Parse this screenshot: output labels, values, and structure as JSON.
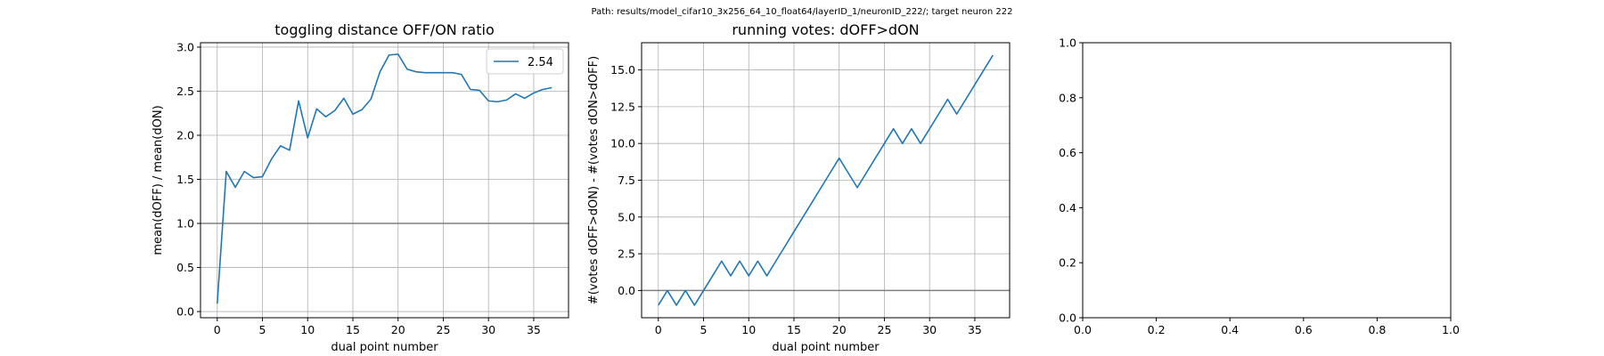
{
  "suptitle": "Path: results/model_cifar10_3x256_64_10_float64/layerID_1/neuronID_222/; target neuron 222",
  "colors": {
    "series": "#1f77b4",
    "hline": "#808080",
    "grid": "#b0b0b0",
    "axis": "#000000"
  },
  "chart_data": [
    {
      "type": "line",
      "title": "toggling distance OFF/ON ratio",
      "xlabel": "dual point number",
      "ylabel": "mean(dOFF) / mean(dON)",
      "xlim": [
        -1.85,
        38.85
      ],
      "ylim": [
        -0.07,
        3.05
      ],
      "xticks": [
        0,
        5,
        10,
        15,
        20,
        25,
        30,
        35
      ],
      "xtick_labels": [
        "0",
        "5",
        "10",
        "15",
        "20",
        "25",
        "30",
        "35"
      ],
      "yticks": [
        0.0,
        0.5,
        1.0,
        1.5,
        2.0,
        2.5,
        3.0
      ],
      "ytick_labels": [
        "0.0",
        "0.5",
        "1.0",
        "1.5",
        "2.0",
        "2.5",
        "3.0"
      ],
      "grid": true,
      "hline": 1.0,
      "legend": {
        "position": "top-right",
        "entries": [
          "2.54"
        ]
      },
      "series": [
        {
          "name": "2.54",
          "x": [
            0,
            1,
            2,
            3,
            4,
            5,
            6,
            7,
            8,
            9,
            10,
            11,
            12,
            13,
            14,
            15,
            16,
            17,
            18,
            19,
            20,
            21,
            22,
            23,
            24,
            25,
            26,
            27,
            28,
            29,
            30,
            31,
            32,
            33,
            34,
            35,
            36,
            37
          ],
          "y": [
            0.09,
            1.59,
            1.41,
            1.59,
            1.52,
            1.53,
            1.73,
            1.88,
            1.83,
            2.39,
            1.97,
            2.3,
            2.21,
            2.28,
            2.42,
            2.24,
            2.29,
            2.41,
            2.72,
            2.91,
            2.92,
            2.75,
            2.72,
            2.71,
            2.71,
            2.71,
            2.71,
            2.69,
            2.52,
            2.51,
            2.39,
            2.38,
            2.4,
            2.47,
            2.42,
            2.48,
            2.52,
            2.54
          ]
        }
      ]
    },
    {
      "type": "line",
      "title": "running votes: dOFF>dON",
      "xlabel": "dual point number",
      "ylabel": "#(votes dOFF>dON) - #(votes dON>dOFF)",
      "xlim": [
        -1.85,
        38.85
      ],
      "ylim": [
        -1.85,
        16.85
      ],
      "xticks": [
        0,
        5,
        10,
        15,
        20,
        25,
        30,
        35
      ],
      "xtick_labels": [
        "0",
        "5",
        "10",
        "15",
        "20",
        "25",
        "30",
        "35"
      ],
      "yticks": [
        0.0,
        2.5,
        5.0,
        7.5,
        10.0,
        12.5,
        15.0
      ],
      "ytick_labels": [
        "0.0",
        "2.5",
        "5.0",
        "7.5",
        "10.0",
        "12.5",
        "15.0"
      ],
      "grid": true,
      "hline": 0.0,
      "series": [
        {
          "x": [
            0,
            1,
            2,
            3,
            4,
            5,
            6,
            7,
            8,
            9,
            10,
            11,
            12,
            13,
            14,
            15,
            16,
            17,
            18,
            19,
            20,
            21,
            22,
            23,
            24,
            25,
            26,
            27,
            28,
            29,
            30,
            31,
            32,
            33,
            34,
            35,
            36,
            37
          ],
          "y": [
            -1,
            0,
            -1,
            0,
            -1,
            0,
            1,
            2,
            1,
            2,
            1,
            2,
            1,
            2,
            3,
            4,
            5,
            6,
            7,
            8,
            9,
            8,
            7,
            8,
            9,
            10,
            11,
            10,
            11,
            10,
            11,
            12,
            13,
            12,
            13,
            14,
            15,
            16
          ]
        }
      ]
    },
    {
      "type": "line",
      "title": "",
      "xlabel": "",
      "ylabel": "",
      "xlim": [
        0,
        1
      ],
      "ylim": [
        0,
        1
      ],
      "xticks": [
        0.0,
        0.2,
        0.4,
        0.6,
        0.8,
        1.0
      ],
      "xtick_labels": [
        "0.0",
        "0.2",
        "0.4",
        "0.6",
        "0.8",
        "1.0"
      ],
      "yticks": [
        0.0,
        0.2,
        0.4,
        0.6,
        0.8,
        1.0
      ],
      "ytick_labels": [
        "0.0",
        "0.2",
        "0.4",
        "0.6",
        "0.8",
        "1.0"
      ],
      "grid": false,
      "series": []
    }
  ]
}
